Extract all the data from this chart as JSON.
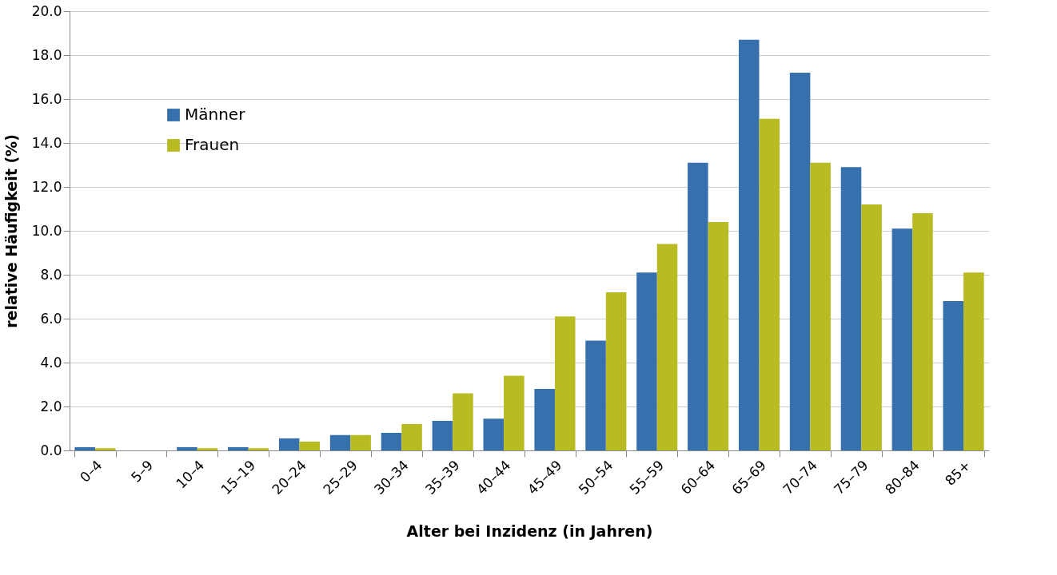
{
  "chart_data": {
    "type": "bar",
    "xlabel": "Alter bei Inzidenz (in Jahren)",
    "ylabel": "relative Häufigkeit (%)",
    "categories": [
      "0–4",
      "5–9",
      "10–4",
      "15–19",
      "20–24",
      "25–29",
      "30–34",
      "35–39",
      "40–44",
      "45–49",
      "50–54",
      "55–59",
      "60–64",
      "65–69",
      "70–74",
      "75–79",
      "80–84",
      "85+"
    ],
    "series": [
      {
        "name": "Männer",
        "color": "#3671ae",
        "values": [
          0.15,
          0,
          0.15,
          0.15,
          0.55,
          0.7,
          0.8,
          1.35,
          1.45,
          2.8,
          5.0,
          8.1,
          13.1,
          18.7,
          17.2,
          12.9,
          10.1,
          6.8
        ]
      },
      {
        "name": "Frauen",
        "color": "#b9bb23",
        "values": [
          0.1,
          0,
          0.1,
          0.1,
          0.4,
          0.7,
          1.2,
          2.6,
          3.4,
          6.1,
          7.2,
          9.4,
          10.4,
          15.1,
          13.1,
          11.2,
          10.8,
          8.1
        ]
      }
    ],
    "ylim": [
      0,
      20
    ],
    "yticks": [
      {
        "value": 0,
        "label": "0.0"
      },
      {
        "value": 2,
        "label": "2.0"
      },
      {
        "value": 4,
        "label": "4.0"
      },
      {
        "value": 6,
        "label": "6.0"
      },
      {
        "value": 8,
        "label": "8.0"
      },
      {
        "value": 10,
        "label": "10.0"
      },
      {
        "value": 12,
        "label": "12.0"
      },
      {
        "value": 14,
        "label": "14.0"
      },
      {
        "value": 16,
        "label": "16.0"
      },
      {
        "value": 18,
        "label": "18.0"
      },
      {
        "value": 20,
        "label": "20.0"
      }
    ],
    "grid": "y",
    "legend": "top left"
  }
}
